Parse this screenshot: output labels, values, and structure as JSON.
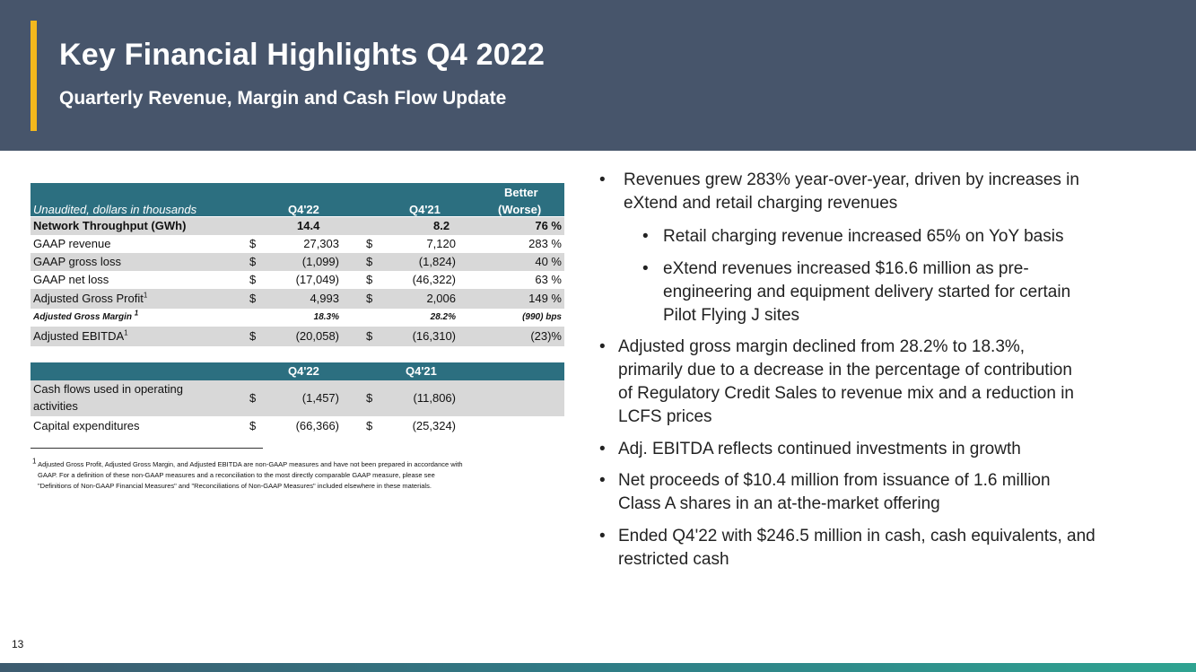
{
  "header": {
    "title": "Key Financial Highlights Q4 2022",
    "subtitle": "Quarterly Revenue, Margin and Cash Flow Update"
  },
  "table1": {
    "caption": "Unaudited, dollars in thousands",
    "col_q4_22": "Q4'22",
    "col_q4_21": "Q4'21",
    "col_change_1": "Better",
    "col_change_2": "(Worse)",
    "rows": [
      {
        "label": "Network Throughput (GWh)",
        "d1": "",
        "v1": "14.4",
        "d2": "",
        "v2": "8.2",
        "v3": "76 %"
      },
      {
        "label": "GAAP revenue",
        "d1": "$",
        "v1": "27,303",
        "d2": "$",
        "v2": "7,120",
        "v3": "283 %"
      },
      {
        "label": "GAAP gross loss",
        "d1": "$",
        "v1": "(1,099)",
        "d2": "$",
        "v2": "(1,824)",
        "v3": "40 %"
      },
      {
        "label": "GAAP net loss",
        "d1": "$",
        "v1": "(17,049)",
        "d2": "$",
        "v2": "(46,322)",
        "v3": "63 %"
      },
      {
        "label": "Adjusted Gross Profit",
        "sup": "1",
        "d1": "$",
        "v1": "4,993",
        "d2": "$",
        "v2": "2,006",
        "v3": "149 %"
      },
      {
        "label": "Adjusted Gross Margin",
        "sup": "1",
        "d1": "",
        "v1": "18.3%",
        "d2": "",
        "v2": "28.2%",
        "v3": "(990) bps"
      },
      {
        "label": "Adjusted EBITDA",
        "sup": "1",
        "d1": "$",
        "v1": "(20,058)",
        "d2": "$",
        "v2": "(16,310)",
        "v3": "(23)%"
      }
    ]
  },
  "table2": {
    "col_q4_22": "Q4'22",
    "col_q4_21": "Q4'21",
    "rows": [
      {
        "label_1": "Cash flows used in operating",
        "label_2": "activities",
        "d1": "$",
        "v1": "(1,457)",
        "d2": "$",
        "v2": "(11,806)"
      },
      {
        "label": "Capital expenditures",
        "d1": "$",
        "v1": "(66,366)",
        "d2": "$",
        "v2": "(25,324)"
      }
    ]
  },
  "footnote": {
    "marker": "1",
    "line1": "Adjusted Gross Profit, Adjusted Gross Margin, and Adjusted EBITDA are non-GAAP measures and have not been prepared in accordance with",
    "line2": "GAAP.  For a definition of these non-GAAP measures and a reconciliation to the most directly comparable GAAP measure, please see",
    "line3": "\"Definitions of Non-GAAP Financial Measures\" and \"Reconciliations of Non-GAAP Measures\" included elsewhere in these materials."
  },
  "bullets": {
    "b1_l1": "Revenues grew 283% year-over-year, driven by increases in",
    "b1_l2": "eXtend and retail charging revenues",
    "s1_l1": "Retail charging revenue increased 65% on YoY basis",
    "s2_l1": "eXtend revenues increased $16.6 million as pre-",
    "s2_l2": "engineering and equipment delivery started for certain",
    "s2_l3": "Pilot Flying J sites",
    "b2_l1": "Adjusted gross margin declined from 28.2% to 18.3%,",
    "b2_l2": "primarily due to a decrease in the percentage of contribution",
    "b2_l3": "of Regulatory Credit Sales to revenue mix and a reduction in",
    "b2_l4": "LCFS prices",
    "b3_l1": "Adj. EBITDA reflects continued investments in growth",
    "b4_l1": "Net proceeds of $10.4 million from issuance of 1.6 million",
    "b4_l2": "Class A shares in an at-the-market offering",
    "b5_l1": "Ended Q4'22 with $246.5 million in cash, cash equivalents, and",
    "b5_l2": "restricted cash",
    "bullet_char": "•"
  },
  "page": {
    "number": "13"
  },
  "colors": {
    "header_bg": "#47556b",
    "accent": "#f3b81d",
    "table_header": "#2c6f80",
    "row_shade": "#d8d8d8"
  }
}
